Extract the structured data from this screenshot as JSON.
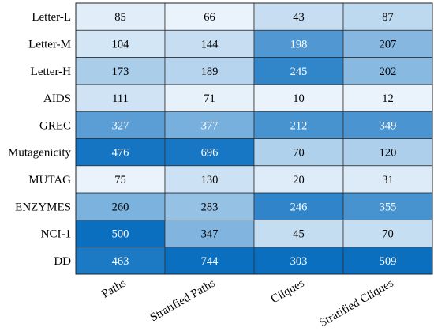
{
  "chart_data": {
    "type": "heatmap",
    "rows": [
      "Letter-L",
      "Letter-M",
      "Letter-H",
      "AIDS",
      "GREC",
      "Mutagenicity",
      "MUTAG",
      "ENZYMES",
      "NCI-1",
      "DD"
    ],
    "columns": [
      "Paths",
      "Stratified Paths",
      "Cliques",
      "Stratified Cliques"
    ],
    "values": [
      [
        85,
        66,
        43,
        87
      ],
      [
        104,
        144,
        198,
        207
      ],
      [
        173,
        189,
        245,
        202
      ],
      [
        111,
        71,
        10,
        12
      ],
      [
        327,
        377,
        212,
        349
      ],
      [
        476,
        696,
        70,
        120
      ],
      [
        75,
        130,
        20,
        31
      ],
      [
        260,
        283,
        246,
        355
      ],
      [
        500,
        347,
        45,
        70
      ],
      [
        463,
        744,
        303,
        509
      ]
    ],
    "color_scale": {
      "low": "#eaf3fb",
      "high": "#0b6fc0"
    },
    "grid": true,
    "legend": "none"
  }
}
